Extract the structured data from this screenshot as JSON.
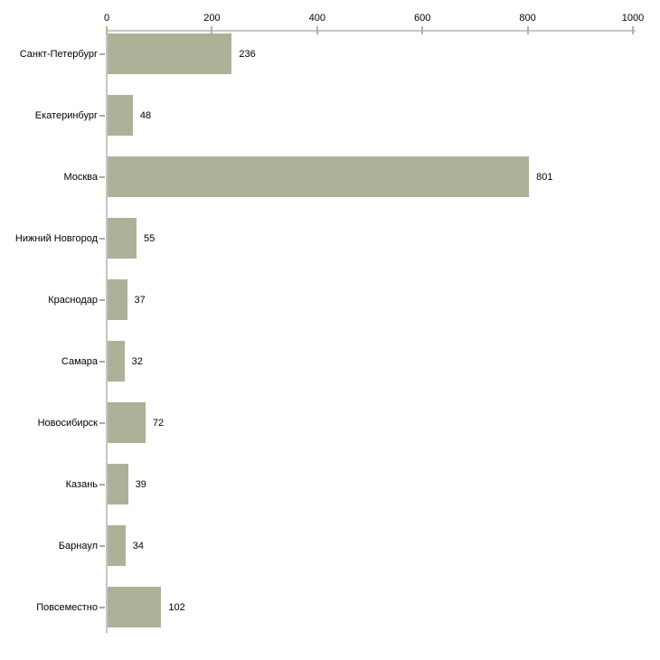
{
  "chart_data": {
    "type": "bar",
    "orientation": "horizontal",
    "title": "",
    "xlabel": "",
    "ylabel": "",
    "grid": false,
    "legend": false,
    "categories": [
      "Санкт-Петербург",
      "Екатеринбург",
      "Москва",
      "Нижний Новгород",
      "Краснодар",
      "Самара",
      "Новосибирск",
      "Казань",
      "Барнаул",
      "Повсеместно"
    ],
    "values": [
      236,
      48,
      801,
      55,
      37,
      32,
      72,
      39,
      34,
      102
    ],
    "value_labels": [
      "236",
      "48",
      "801",
      "55",
      "37",
      "32",
      "72",
      "39",
      "34",
      "102"
    ],
    "x_ticks": [
      0,
      200,
      400,
      600,
      800,
      1000
    ],
    "x_tick_labels": [
      "0",
      "200",
      "400",
      "600",
      "800",
      "1000"
    ],
    "xlim": [
      0,
      1000
    ],
    "colors": {
      "bar": "#acb198",
      "axis_line": "#c6c6c6",
      "x_tick": "#b4b68f",
      "y_tick": "#a9ad92",
      "label_text": "#000000",
      "background": "#ffffff"
    }
  }
}
